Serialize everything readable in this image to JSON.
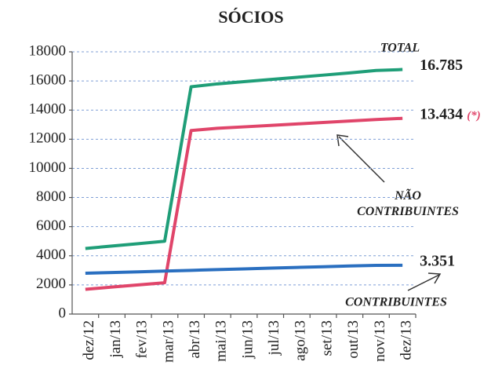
{
  "chart_data": {
    "type": "line",
    "title": "SÓCIOS",
    "categories": [
      "dez/12",
      "jan/13",
      "fev/13",
      "mar/13",
      "abr/13",
      "mai/13",
      "jun/13",
      "jul/13",
      "ago/13",
      "set/13",
      "out/13",
      "nov/13",
      "dez/13"
    ],
    "series": [
      {
        "name": "TOTAL",
        "color": "#1f9e78",
        "values": [
          4500,
          4670,
          4830,
          5000,
          15600,
          15800,
          15950,
          16100,
          16250,
          16400,
          16550,
          16720,
          16785
        ],
        "value_labels": [
          null,
          null,
          null,
          null,
          null,
          null,
          null,
          null,
          null,
          null,
          null,
          null,
          "16.785"
        ]
      },
      {
        "name": "NÃO CONTRIBUINTES",
        "color": "#e0456a",
        "values": [
          1700,
          1850,
          2000,
          2150,
          12600,
          12750,
          12850,
          12950,
          13050,
          13150,
          13250,
          13350,
          13434
        ],
        "value_labels": [
          null,
          null,
          null,
          null,
          null,
          null,
          null,
          null,
          null,
          null,
          null,
          null,
          "13.434"
        ]
      },
      {
        "name": "CONTRIBUINTES",
        "color": "#2a6fc0",
        "values": [
          2800,
          2850,
          2900,
          2950,
          3000,
          3050,
          3100,
          3150,
          3200,
          3250,
          3300,
          3340,
          3351
        ],
        "value_labels": [
          null,
          null,
          null,
          null,
          null,
          null,
          null,
          null,
          null,
          null,
          null,
          null,
          "3.351"
        ]
      }
    ],
    "annotation": "(*)",
    "ylim": [
      0,
      18000
    ],
    "yticks": [
      0,
      2000,
      4000,
      6000,
      8000,
      10000,
      12000,
      14000,
      16000,
      18000
    ],
    "grid": true
  }
}
